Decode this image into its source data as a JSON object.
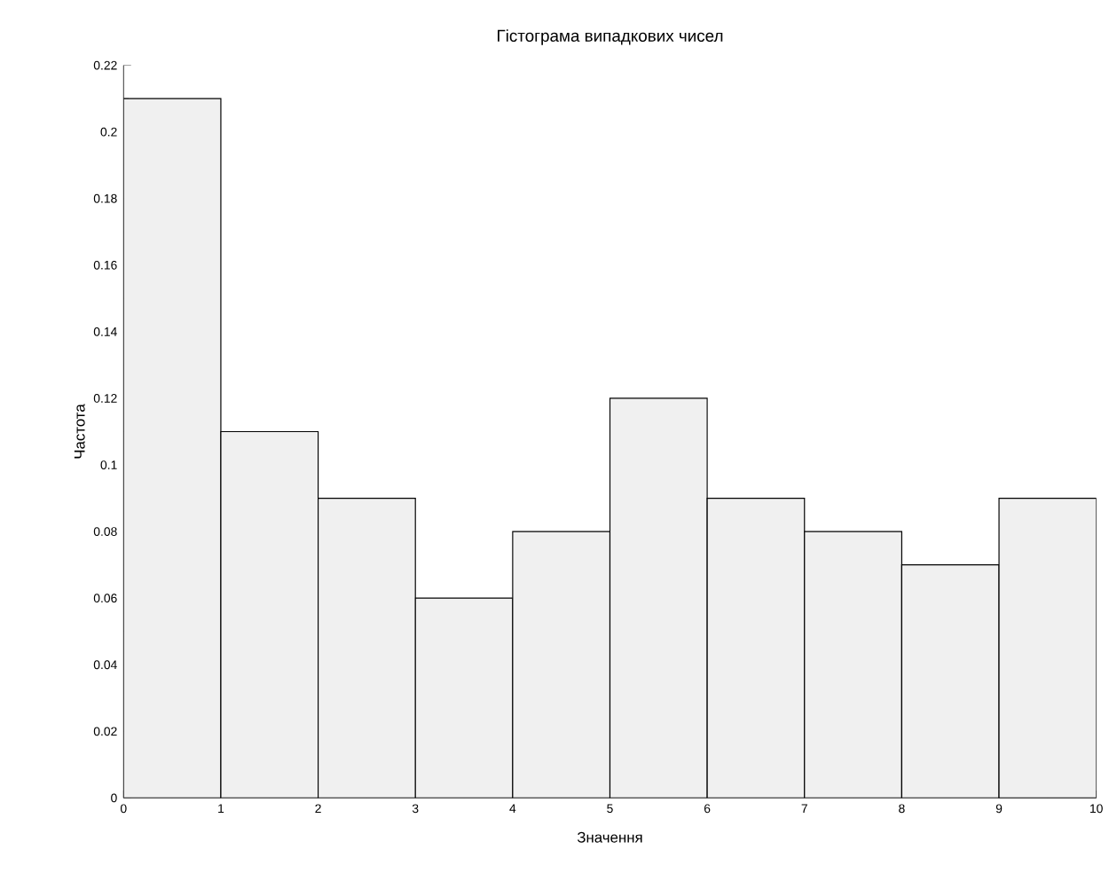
{
  "chart_data": {
    "type": "histogram",
    "title": "Гістограма випадкових чисел",
    "xlabel": "Значення",
    "ylabel": "Частота",
    "bins": [
      0,
      1,
      2,
      3,
      4,
      5,
      6,
      7,
      8,
      9,
      10
    ],
    "values": [
      0.21,
      0.11,
      0.09,
      0.06,
      0.08,
      0.12,
      0.09,
      0.08,
      0.07,
      0.09
    ],
    "color": "#f0f0f0",
    "xlim": [
      0,
      10
    ],
    "ylim": [
      0,
      0.22
    ],
    "xticks": [
      0,
      1,
      2,
      3,
      4,
      5,
      6,
      7,
      8,
      9,
      10
    ],
    "yticks": [
      0,
      0.02,
      0.04,
      0.06,
      0.08,
      0.1,
      0.12,
      0.14,
      0.16,
      0.18,
      0.2,
      0.22
    ],
    "grid": false
  }
}
